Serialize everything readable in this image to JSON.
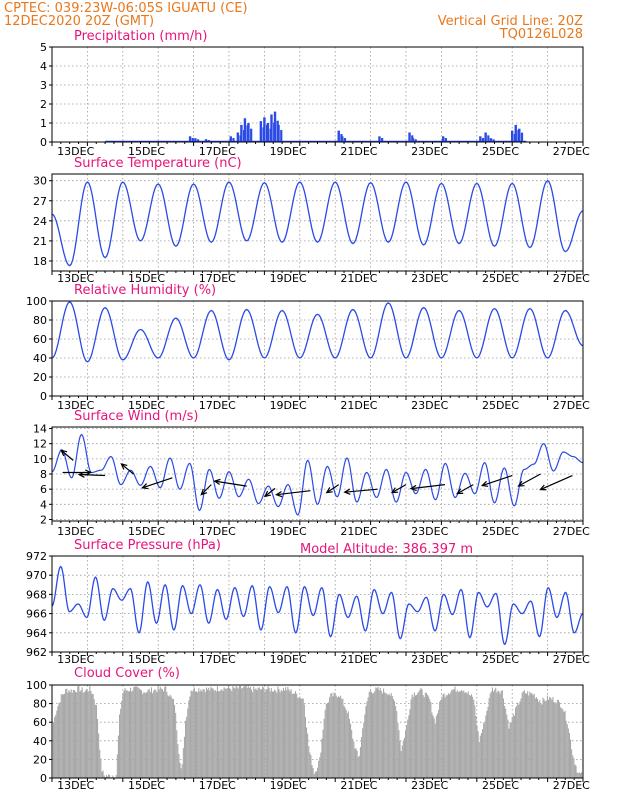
{
  "header": {
    "left_line1": "CPTEC:   039:23W-06:05S   IGUATU (CE)",
    "left_line2": "12DEC2020 20Z (GMT)",
    "right_line1": "Vertical Grid Line: 20Z",
    "right_line2": "TQ0126L028",
    "model_altitude": "Model Altitude: 386.397 m"
  },
  "colors": {
    "header": "#e8781e",
    "panel_title": "#e8147a",
    "series": "#2b4ae6",
    "cloud": "#a8a8a8",
    "grid": "#9a9a9a",
    "axis": "#000000"
  },
  "chart_data": [
    {
      "type": "bar",
      "title": "Precipitation  (mm/h)",
      "x_labels": [
        "13DEC",
        "15DEC",
        "17DEC",
        "19DEC",
        "21DEC",
        "23DEC",
        "25DEC",
        "27DEC"
      ],
      "y_ticks": [
        0,
        1,
        2,
        3,
        4,
        5
      ],
      "ylim": [
        0,
        5
      ],
      "grid": true,
      "events": [
        {
          "x": 3.9,
          "v": 0.3
        },
        {
          "x": 4.05,
          "v": 0.2
        },
        {
          "x": 4.35,
          "v": 0.15
        },
        {
          "x": 5.05,
          "v": 0.3
        },
        {
          "x": 5.25,
          "v": 0.5
        },
        {
          "x": 5.35,
          "v": 0.9
        },
        {
          "x": 5.45,
          "v": 1.25
        },
        {
          "x": 5.55,
          "v": 1.0
        },
        {
          "x": 5.9,
          "v": 1.1
        },
        {
          "x": 6.0,
          "v": 1.3
        },
        {
          "x": 6.1,
          "v": 1.0
        },
        {
          "x": 6.2,
          "v": 1.45
        },
        {
          "x": 6.3,
          "v": 1.6
        },
        {
          "x": 6.4,
          "v": 0.9
        },
        {
          "x": 8.1,
          "v": 0.6
        },
        {
          "x": 8.2,
          "v": 0.3
        },
        {
          "x": 9.25,
          "v": 0.3
        },
        {
          "x": 10.1,
          "v": 0.5
        },
        {
          "x": 10.2,
          "v": 0.2
        },
        {
          "x": 11.05,
          "v": 0.3
        },
        {
          "x": 12.1,
          "v": 0.3
        },
        {
          "x": 12.25,
          "v": 0.5
        },
        {
          "x": 12.4,
          "v": 0.2
        },
        {
          "x": 13.0,
          "v": 0.6
        },
        {
          "x": 13.1,
          "v": 0.9
        },
        {
          "x": 13.2,
          "v": 0.7
        }
      ]
    },
    {
      "type": "line",
      "title": "Surface Temperature  (nC)",
      "x_labels": [
        "13DEC",
        "15DEC",
        "17DEC",
        "19DEC",
        "21DEC",
        "23DEC",
        "25DEC",
        "27DEC"
      ],
      "y_ticks": [
        18,
        21,
        24,
        27,
        30
      ],
      "ylim": [
        16.5,
        31
      ],
      "grid": true,
      "minima": [
        17.3,
        18.5,
        21.0,
        20.2,
        20.8,
        21.0,
        20.8,
        20.8,
        20.6,
        20.8,
        20.4,
        20.6,
        20.2,
        20.0,
        19.4
      ],
      "maxima": [
        29.8,
        29.8,
        29.5,
        29.5,
        29.8,
        29.7,
        29.8,
        29.8,
        29.7,
        29.8,
        29.6,
        29.6,
        29.6,
        30.0
      ],
      "start_value": 25.0,
      "end_value": 25.5
    },
    {
      "type": "line",
      "title": "Relative Humidity  (%)",
      "x_labels": [
        "13DEC",
        "15DEC",
        "17DEC",
        "19DEC",
        "21DEC",
        "23DEC",
        "25DEC",
        "27DEC"
      ],
      "y_ticks": [
        0,
        20,
        40,
        60,
        80,
        100
      ],
      "ylim": [
        0,
        100
      ],
      "grid": true,
      "maxima": [
        99,
        93,
        70,
        82,
        90,
        91,
        90,
        86,
        91,
        98,
        93,
        90,
        92,
        92,
        90
      ],
      "minima": [
        36,
        38,
        40,
        40,
        38,
        40,
        40,
        40,
        40,
        40,
        40,
        40,
        40,
        40
      ],
      "start_value": 40,
      "end_value": 53
    },
    {
      "type": "line",
      "title": "Surface Wind  (m/s)",
      "x_labels": [
        "13DEC",
        "15DEC",
        "17DEC",
        "19DEC",
        "21DEC",
        "23DEC",
        "25DEC",
        "27DEC"
      ],
      "y_ticks": [
        2,
        4,
        6,
        8,
        10,
        12,
        14
      ],
      "ylim": [
        1.8,
        14.2
      ],
      "grid": true,
      "values": [
        8.3,
        11.2,
        7.5,
        13.2,
        8.2,
        8.5,
        10.3,
        6.6,
        8.5,
        6.5,
        9.0,
        6.2,
        10.1,
        6.0,
        9.4,
        3.2,
        8.6,
        4.8,
        8.3,
        5.0,
        7.3,
        4.1,
        6.4,
        3.7,
        6.6,
        2.6,
        9.8,
        4.0,
        9.0,
        5.0,
        10.1,
        4.3,
        8.2,
        4.9,
        8.6,
        4.3,
        8.2,
        5.4,
        8.6,
        4.6,
        9.4,
        4.9,
        8.1,
        5.4,
        9.5,
        4.2,
        8.8,
        3.8,
        8.6,
        9.3,
        12.0,
        8.4,
        10.9,
        10.3,
        9.5
      ],
      "arrows": [
        {
          "x": 0.3,
          "y": 8.2,
          "dx": 28,
          "dy": 0
        },
        {
          "x": 0.6,
          "y": 9.8,
          "dx": -12,
          "dy": -10
        },
        {
          "x": 1.5,
          "y": 7.8,
          "dx": -26,
          "dy": -1
        },
        {
          "x": 2.3,
          "y": 8.0,
          "dx": -12,
          "dy": -10
        },
        {
          "x": 3.4,
          "y": 7.5,
          "dx": -30,
          "dy": 10
        },
        {
          "x": 4.5,
          "y": 6.6,
          "dx": -10,
          "dy": 10
        },
        {
          "x": 5.5,
          "y": 6.4,
          "dx": -32,
          "dy": -5
        },
        {
          "x": 6.3,
          "y": 6.1,
          "dx": -10,
          "dy": 8
        },
        {
          "x": 7.3,
          "y": 5.8,
          "dx": -34,
          "dy": 4
        },
        {
          "x": 8.1,
          "y": 6.6,
          "dx": -12,
          "dy": 8
        },
        {
          "x": 9.2,
          "y": 6.0,
          "dx": -33,
          "dy": 3
        },
        {
          "x": 10.0,
          "y": 6.6,
          "dx": -14,
          "dy": 8
        },
        {
          "x": 11.1,
          "y": 6.6,
          "dx": -34,
          "dy": 4
        },
        {
          "x": 11.9,
          "y": 6.6,
          "dx": -16,
          "dy": 9
        },
        {
          "x": 13.0,
          "y": 7.8,
          "dx": -30,
          "dy": 10
        },
        {
          "x": 13.8,
          "y": 8.0,
          "dx": -22,
          "dy": 12
        },
        {
          "x": 14.7,
          "y": 7.8,
          "dx": -32,
          "dy": 14
        }
      ]
    },
    {
      "type": "line",
      "title": "Surface Pressure  (hPa)",
      "x_labels": [
        "13DEC",
        "15DEC",
        "17DEC",
        "19DEC",
        "21DEC",
        "23DEC",
        "25DEC",
        "27DEC"
      ],
      "y_ticks": [
        962,
        964,
        966,
        968,
        970,
        972
      ],
      "ylim": [
        962,
        972
      ],
      "grid": true,
      "extrema": [
        966.8,
        970.9,
        966.2,
        967.0,
        965.6,
        969.8,
        965.3,
        968.6,
        967.4,
        968.6,
        964.0,
        969.3,
        965.0,
        969.0,
        964.3,
        968.9,
        966.0,
        969.0,
        965.0,
        968.5,
        965.4,
        968.7,
        965.7,
        968.9,
        964.3,
        968.8,
        966.1,
        968.8,
        964.0,
        968.8,
        965.8,
        968.7,
        963.6,
        968.0,
        965.6,
        967.8,
        964.2,
        968.5,
        966.0,
        968.2,
        963.4,
        967.0,
        966.2,
        967.7,
        964.2,
        968.0,
        965.9,
        968.5,
        963.5,
        968.2,
        966.7,
        968.1,
        962.8,
        967.0,
        966.0,
        967.3,
        963.6,
        968.7,
        965.6,
        968.2,
        964.0,
        966.0
      ],
      "model_altitude_m": 386.397
    },
    {
      "type": "area",
      "title": "Cloud Cover  (%)",
      "x_labels": [
        "13DEC",
        "15DEC",
        "17DEC",
        "19DEC",
        "21DEC",
        "23DEC",
        "25DEC",
        "27DEC"
      ],
      "y_ticks": [
        0,
        20,
        40,
        60,
        80,
        100
      ],
      "ylim": [
        0,
        100
      ],
      "grid": true,
      "profile": [
        {
          "x": 0.0,
          "v": 55
        },
        {
          "x": 0.1,
          "v": 72
        },
        {
          "x": 0.25,
          "v": 88
        },
        {
          "x": 0.4,
          "v": 95
        },
        {
          "x": 0.55,
          "v": 94
        },
        {
          "x": 0.75,
          "v": 96
        },
        {
          "x": 0.9,
          "v": 93
        },
        {
          "x": 1.05,
          "v": 96
        },
        {
          "x": 1.15,
          "v": 90
        },
        {
          "x": 1.25,
          "v": 75
        },
        {
          "x": 1.32,
          "v": 40
        },
        {
          "x": 1.38,
          "v": 10
        },
        {
          "x": 1.45,
          "v": 3
        },
        {
          "x": 1.6,
          "v": 2
        },
        {
          "x": 1.8,
          "v": 4
        },
        {
          "x": 1.9,
          "v": 70
        },
        {
          "x": 2.0,
          "v": 94
        },
        {
          "x": 2.3,
          "v": 96
        },
        {
          "x": 2.6,
          "v": 93
        },
        {
          "x": 2.9,
          "v": 95
        },
        {
          "x": 3.2,
          "v": 96
        },
        {
          "x": 3.45,
          "v": 80
        },
        {
          "x": 3.55,
          "v": 35
        },
        {
          "x": 3.65,
          "v": 5
        },
        {
          "x": 3.75,
          "v": 60
        },
        {
          "x": 3.9,
          "v": 95
        },
        {
          "x": 4.2,
          "v": 96
        },
        {
          "x": 4.5,
          "v": 95
        },
        {
          "x": 4.8,
          "v": 97
        },
        {
          "x": 5.1,
          "v": 96
        },
        {
          "x": 5.4,
          "v": 97
        },
        {
          "x": 5.7,
          "v": 95
        },
        {
          "x": 6.0,
          "v": 96
        },
        {
          "x": 6.3,
          "v": 95
        },
        {
          "x": 6.6,
          "v": 96
        },
        {
          "x": 6.9,
          "v": 90
        },
        {
          "x": 7.1,
          "v": 85
        },
        {
          "x": 7.25,
          "v": 30
        },
        {
          "x": 7.4,
          "v": 5
        },
        {
          "x": 7.55,
          "v": 20
        },
        {
          "x": 7.7,
          "v": 75
        },
        {
          "x": 7.85,
          "v": 88
        },
        {
          "x": 8.1,
          "v": 90
        },
        {
          "x": 8.35,
          "v": 70
        },
        {
          "x": 8.5,
          "v": 40
        },
        {
          "x": 8.65,
          "v": 20
        },
        {
          "x": 8.8,
          "v": 65
        },
        {
          "x": 8.95,
          "v": 93
        },
        {
          "x": 9.2,
          "v": 95
        },
        {
          "x": 9.5,
          "v": 92
        },
        {
          "x": 9.7,
          "v": 80
        },
        {
          "x": 9.85,
          "v": 30
        },
        {
          "x": 10.0,
          "v": 55
        },
        {
          "x": 10.15,
          "v": 90
        },
        {
          "x": 10.4,
          "v": 94
        },
        {
          "x": 10.65,
          "v": 85
        },
        {
          "x": 10.8,
          "v": 60
        },
        {
          "x": 11.0,
          "v": 88
        },
        {
          "x": 11.3,
          "v": 95
        },
        {
          "x": 11.6,
          "v": 96
        },
        {
          "x": 11.9,
          "v": 85
        },
        {
          "x": 12.05,
          "v": 40
        },
        {
          "x": 12.2,
          "v": 60
        },
        {
          "x": 12.4,
          "v": 96
        },
        {
          "x": 12.7,
          "v": 94
        },
        {
          "x": 12.9,
          "v": 55
        },
        {
          "x": 13.05,
          "v": 70
        },
        {
          "x": 13.3,
          "v": 92
        },
        {
          "x": 13.6,
          "v": 90
        },
        {
          "x": 13.8,
          "v": 82
        },
        {
          "x": 14.0,
          "v": 86
        },
        {
          "x": 14.2,
          "v": 84
        },
        {
          "x": 14.4,
          "v": 78
        },
        {
          "x": 14.55,
          "v": 60
        },
        {
          "x": 14.7,
          "v": 25
        },
        {
          "x": 14.85,
          "v": 5
        },
        {
          "x": 15.0,
          "v": 2
        }
      ]
    }
  ]
}
